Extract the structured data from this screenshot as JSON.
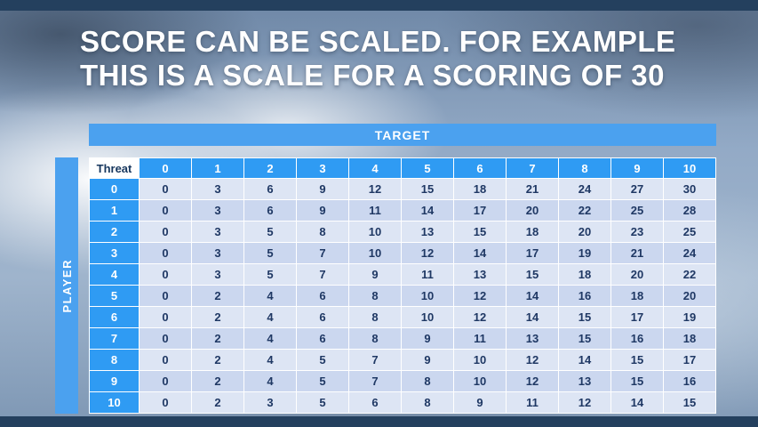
{
  "title": {
    "line1": "SCORE CAN BE SCALED. FOR EXAMPLE",
    "line2": "THIS IS A SCALE FOR A SCORING OF 30"
  },
  "table": {
    "target_label": "TARGET",
    "player_label": "PLAYER",
    "threat_label": "Threat",
    "column_headers": [
      "0",
      "1",
      "2",
      "3",
      "4",
      "5",
      "6",
      "7",
      "8",
      "9",
      "10"
    ],
    "rows": [
      {
        "label": "0",
        "values": [
          0,
          3,
          6,
          9,
          12,
          15,
          18,
          21,
          24,
          27,
          30
        ]
      },
      {
        "label": "1",
        "values": [
          0,
          3,
          6,
          9,
          11,
          14,
          17,
          20,
          22,
          25,
          28
        ]
      },
      {
        "label": "2",
        "values": [
          0,
          3,
          5,
          8,
          10,
          13,
          15,
          18,
          20,
          23,
          25
        ]
      },
      {
        "label": "3",
        "values": [
          0,
          3,
          5,
          7,
          10,
          12,
          14,
          17,
          19,
          21,
          24
        ]
      },
      {
        "label": "4",
        "values": [
          0,
          3,
          5,
          7,
          9,
          11,
          13,
          15,
          18,
          20,
          22
        ]
      },
      {
        "label": "5",
        "values": [
          0,
          2,
          4,
          6,
          8,
          10,
          12,
          14,
          16,
          18,
          20
        ]
      },
      {
        "label": "6",
        "values": [
          0,
          2,
          4,
          6,
          8,
          10,
          12,
          14,
          15,
          17,
          19
        ]
      },
      {
        "label": "7",
        "values": [
          0,
          2,
          4,
          6,
          8,
          9,
          11,
          13,
          15,
          16,
          18
        ]
      },
      {
        "label": "8",
        "values": [
          0,
          2,
          4,
          5,
          7,
          9,
          10,
          12,
          14,
          15,
          17
        ]
      },
      {
        "label": "9",
        "values": [
          0,
          2,
          4,
          5,
          7,
          8,
          10,
          12,
          13,
          15,
          16
        ]
      },
      {
        "label": "10",
        "values": [
          0,
          2,
          3,
          5,
          6,
          8,
          9,
          11,
          12,
          14,
          15
        ]
      }
    ]
  },
  "colors": {
    "accent_blue": "#4ba1ef",
    "header_blue": "#2f9bf3",
    "band_light": "#dde5f4",
    "band_dark": "#cbd7ef",
    "bar_navy": "#24405e",
    "cell_text": "#1f3864"
  }
}
